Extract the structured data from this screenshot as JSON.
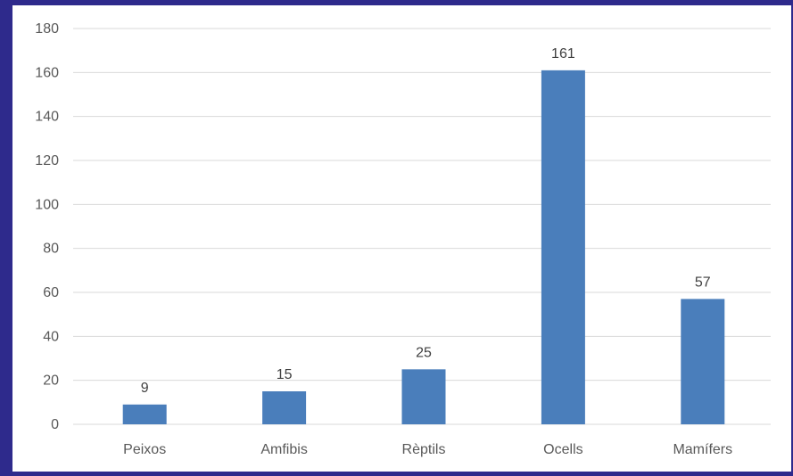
{
  "colors": {
    "frame": "#2e2a8c",
    "background": "#ffffff",
    "bar": "#4a7ebb",
    "gridline": "#d9d9d9",
    "axis_text": "#595959"
  },
  "chart_data": {
    "type": "bar",
    "title": "",
    "xlabel": "",
    "ylabel": "",
    "categories": [
      "Peixos",
      "Amfibis",
      "Rèptils",
      "Ocells",
      "Mamífers"
    ],
    "values": [
      9,
      15,
      25,
      161,
      57
    ],
    "ylim": [
      0,
      180
    ],
    "yticks": [
      0,
      20,
      40,
      60,
      80,
      100,
      120,
      140,
      160,
      180
    ],
    "grid": true,
    "data_labels": true,
    "legend": "none"
  }
}
